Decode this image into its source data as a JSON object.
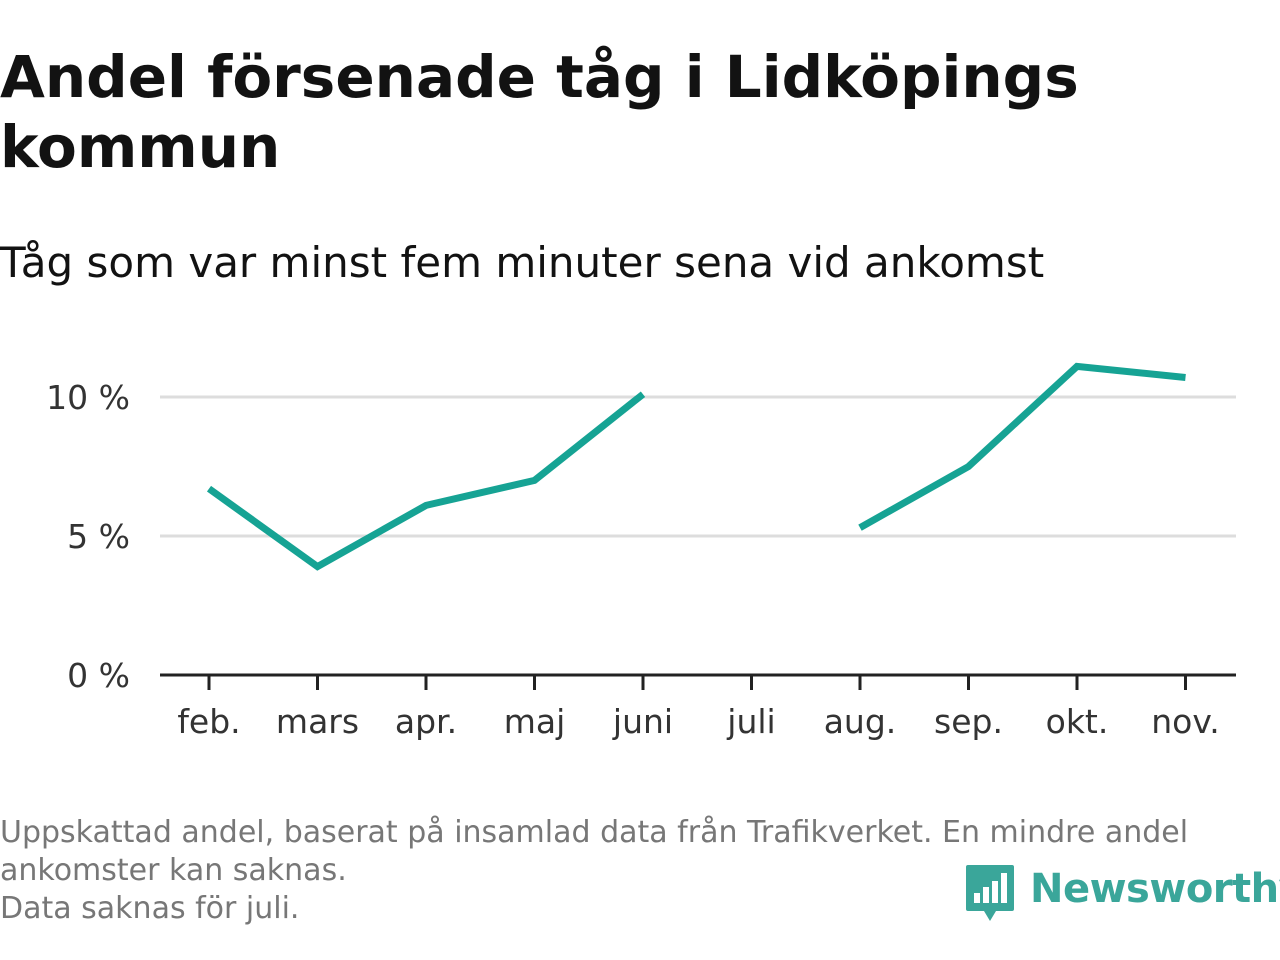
{
  "title": "Andel försenade tåg i Lidköpings kommun",
  "subtitle": "Tåg som var minst fem minuter sena vid ankomst",
  "footnote": {
    "line1": "Uppskattad andel, baserat på insamlad data från Trafikverket. En mindre andel",
    "line2": "ankomster kan saknas.",
    "line3": "Data saknas för juli."
  },
  "brand": {
    "name": "Newsworthy",
    "icon": "newsworthy-logo-icon",
    "color": "#3aa69a"
  },
  "colors": {
    "line": "#16a394",
    "grid": "#dddddd",
    "axis": "#222222",
    "text": "#121212",
    "muted": "#777777"
  },
  "chart_data": {
    "type": "line",
    "categories": [
      "feb.",
      "mars",
      "apr.",
      "maj",
      "juni",
      "juli",
      "aug.",
      "sep.",
      "okt.",
      "nov."
    ],
    "series": [
      {
        "values": [
          6.7,
          3.9,
          6.1,
          7.0,
          10.1,
          null,
          5.3,
          7.5,
          11.1,
          10.7
        ]
      }
    ],
    "y_ticks": [
      0,
      5,
      10
    ],
    "y_tick_labels": [
      "0 %",
      "5 %",
      "10 %"
    ],
    "ylim": [
      0,
      11.5
    ],
    "xlabel": "",
    "ylabel": "",
    "grid": true,
    "missing": [
      "juli"
    ]
  }
}
